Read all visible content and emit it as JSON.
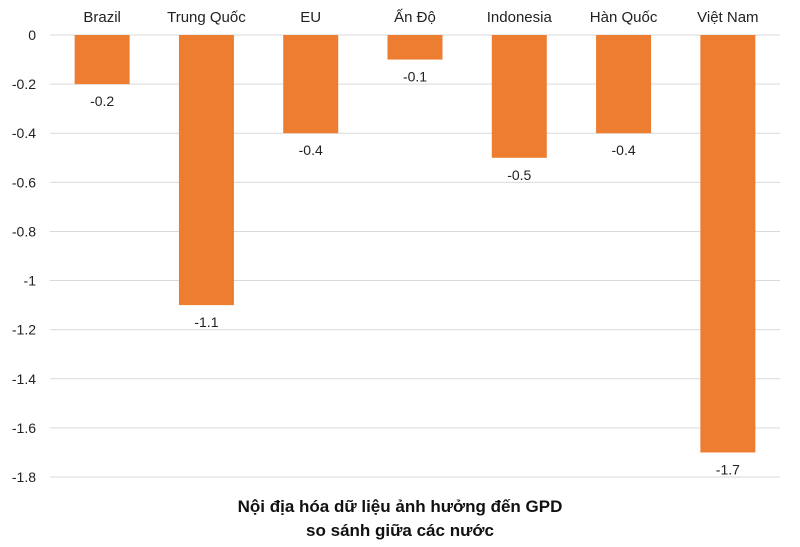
{
  "chart_data": {
    "type": "bar",
    "title_lines": [
      "Nội địa hóa dữ liệu ảnh hưởng đến GPD",
      "so sánh giữa các nước"
    ],
    "categories": [
      "Brazil",
      "Trung Quốc",
      "EU",
      "Ấn Độ",
      "Indonesia",
      "Hàn Quốc",
      "Việt Nam"
    ],
    "values": [
      -0.2,
      -1.1,
      -0.4,
      -0.1,
      -0.5,
      -0.4,
      -1.7
    ],
    "value_labels": [
      "-0.2",
      "-1.1",
      "-0.4",
      "-0.1",
      "-0.5",
      "-0.4",
      "-1.7"
    ],
    "yticks": [
      "0",
      "-0.2",
      "-0.4",
      "-0.6",
      "-0.8",
      "-1",
      "-1.2",
      "-1.4",
      "-1.6",
      "-1.8"
    ],
    "ylim": [
      -1.8,
      0
    ],
    "grid": true,
    "bar_color": "#ED7D31",
    "category_labels_position": "top"
  }
}
